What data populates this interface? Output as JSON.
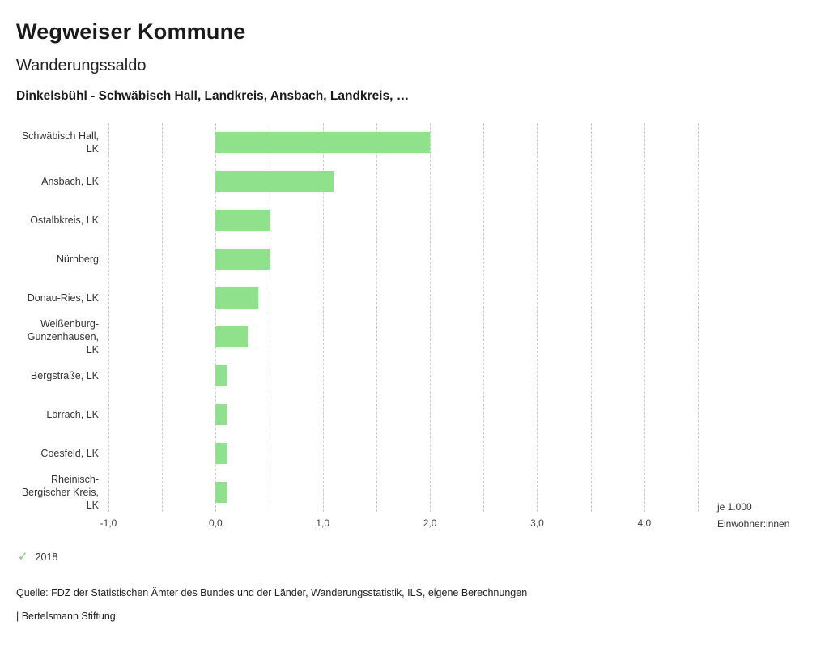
{
  "header": {
    "title": "Wegweiser Kommune",
    "subtitle": "Wanderungssaldo",
    "selection": "Dinkelsbühl - Schwäbisch Hall, Landkreis, Ansbach, Landkreis, …"
  },
  "chart_data": {
    "type": "bar",
    "orientation": "horizontal",
    "title": "Wanderungssaldo",
    "categories": [
      "Schwäbisch Hall, LK",
      "Ansbach, LK",
      "Ostalbkreis, LK",
      "Nürnberg",
      "Donau-Ries, LK",
      "Weißenburg-Gunzenhausen, LK",
      "Bergstraße, LK",
      "Lörrach, LK",
      "Coesfeld, LK",
      "Rheinisch-Bergischer Kreis, LK"
    ],
    "series": [
      {
        "name": "2018",
        "values": [
          2.0,
          1.1,
          0.5,
          0.5,
          0.4,
          0.3,
          0.1,
          0.1,
          0.1,
          0.1
        ]
      }
    ],
    "xlim": [
      -1.0,
      4.5
    ],
    "x_tick_values": [
      -1.0,
      0.0,
      1.0,
      2.0,
      3.0,
      4.0
    ],
    "x_tick_labels": [
      "-1,0",
      "0,0",
      "1,0",
      "2,0",
      "3,0",
      "4,0"
    ],
    "grid_step": 0.5,
    "grid": "dashed",
    "legend_position": "bottom-left",
    "unit_line1": "je 1.000",
    "unit_line2": "Einwohner:innen",
    "bar_color": "#8fe28b"
  },
  "legend": {
    "year": "2018",
    "check_color": "#7dc36b"
  },
  "footer": {
    "source": "Quelle: FDZ der Statistischen Ämter des Bundes und der Länder, Wanderungsstatistik, ILS, eigene Berechnungen",
    "branding": "| Bertelsmann Stiftung"
  }
}
